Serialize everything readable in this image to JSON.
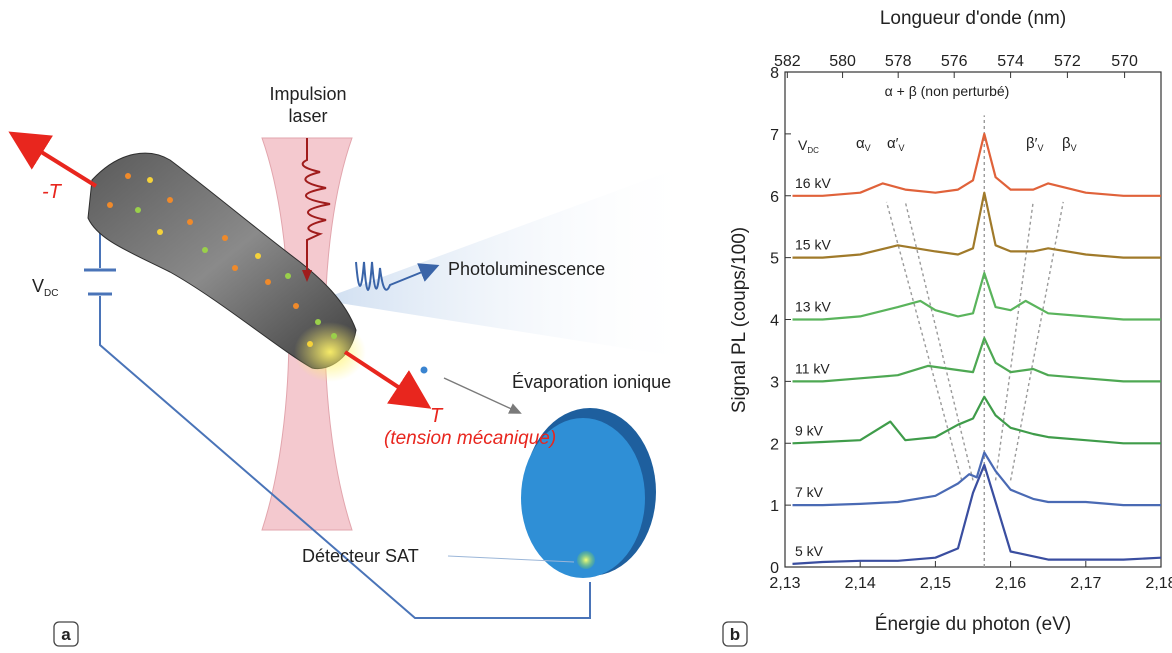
{
  "panel_a": {
    "badge": "a",
    "laser_label_line1": "Impulsion",
    "laser_label_line2": "laser",
    "neg_tension": "-T",
    "vdc_main": "V",
    "vdc_sub": "DC",
    "photolum": "Photoluminescence",
    "evaporation": "Évaporation ionique",
    "tension_t": "T",
    "tension_desc": "(tension mécanique)",
    "detector": "Détecteur SAT",
    "colors": {
      "tension": "#e8261e",
      "wire": "#4a74b8",
      "detector": "#2f8fd6",
      "laser": "#f4c9cf",
      "pulse": "#a01c1c",
      "photon": "#3a64a8"
    }
  },
  "panel_b": {
    "badge": "b",
    "annotation_unperturbed": "α + β (non perturbé)",
    "vdc_main": "V",
    "vdc_sub": "DC",
    "alpha_main": "α",
    "alpha_prime_main": "α′",
    "beta_prime_main": "β′",
    "beta_main": "β",
    "peak_sub": "V"
  },
  "chart_data": {
    "type": "line",
    "xlabel": "Énergie du photon (eV)",
    "ylabel": "Signal PL (coups/100)",
    "x2label": "Longueur d'onde (nm)",
    "xlim": [
      2.13,
      2.18
    ],
    "ylim": [
      0,
      8
    ],
    "x_ticks": [
      "2,13",
      "2,14",
      "2,15",
      "2,16",
      "2,17",
      "2,18"
    ],
    "y_ticks": [
      "0",
      "1",
      "2",
      "3",
      "4",
      "5",
      "6",
      "7",
      "8"
    ],
    "x2_ticks": [
      "582",
      "580",
      "578",
      "576",
      "574",
      "572",
      "570"
    ],
    "series": [
      {
        "name": "5 kV",
        "color": "#3a4ea0",
        "x": [
          2.131,
          2.135,
          2.14,
          2.145,
          2.15,
          2.153,
          2.155,
          2.1565,
          2.158,
          2.16,
          2.165,
          2.17,
          2.175,
          2.18
        ],
        "y": [
          0.05,
          0.08,
          0.1,
          0.1,
          0.15,
          0.3,
          1.2,
          1.65,
          1.05,
          0.25,
          0.12,
          0.12,
          0.12,
          0.15
        ]
      },
      {
        "name": "7 kV",
        "color": "#4a6ab4",
        "x": [
          2.131,
          2.135,
          2.14,
          2.145,
          2.15,
          2.153,
          2.1545,
          2.1555,
          2.1565,
          2.158,
          2.16,
          2.163,
          2.165,
          2.17,
          2.175,
          2.18
        ],
        "y": [
          1.0,
          1.0,
          1.02,
          1.05,
          1.15,
          1.35,
          1.5,
          1.45,
          1.85,
          1.55,
          1.25,
          1.1,
          1.05,
          1.05,
          1.0,
          1.0
        ]
      },
      {
        "name": "9 kV",
        "color": "#3f9c4a",
        "x": [
          2.131,
          2.135,
          2.14,
          2.144,
          2.146,
          2.15,
          2.153,
          2.155,
          2.1565,
          2.158,
          2.16,
          2.163,
          2.165,
          2.17,
          2.175,
          2.18
        ],
        "y": [
          2.0,
          2.02,
          2.05,
          2.35,
          2.05,
          2.1,
          2.3,
          2.4,
          2.75,
          2.45,
          2.25,
          2.15,
          2.1,
          2.05,
          2.0,
          2.0
        ]
      },
      {
        "name": "11 kV",
        "color": "#4ea853",
        "x": [
          2.131,
          2.135,
          2.14,
          2.145,
          2.149,
          2.152,
          2.155,
          2.1565,
          2.158,
          2.16,
          2.163,
          2.165,
          2.17,
          2.175,
          2.18
        ],
        "y": [
          3.0,
          3.0,
          3.05,
          3.1,
          3.25,
          3.2,
          3.15,
          3.7,
          3.3,
          3.15,
          3.2,
          3.1,
          3.05,
          3.0,
          3.0
        ]
      },
      {
        "name": "13 kV",
        "color": "#5ab45c",
        "x": [
          2.131,
          2.135,
          2.14,
          2.145,
          2.148,
          2.15,
          2.153,
          2.155,
          2.1565,
          2.158,
          2.16,
          2.162,
          2.165,
          2.17,
          2.175,
          2.18
        ],
        "y": [
          4.0,
          4.0,
          4.05,
          4.2,
          4.3,
          4.15,
          4.05,
          4.1,
          4.75,
          4.2,
          4.15,
          4.3,
          4.1,
          4.05,
          4.0,
          4.0
        ]
      },
      {
        "name": "15 kV",
        "color": "#a07a2a",
        "x": [
          2.131,
          2.135,
          2.14,
          2.145,
          2.15,
          2.153,
          2.155,
          2.1565,
          2.158,
          2.16,
          2.163,
          2.165,
          2.17,
          2.175,
          2.18
        ],
        "y": [
          5.0,
          5.0,
          5.05,
          5.2,
          5.1,
          5.05,
          5.15,
          6.05,
          5.2,
          5.1,
          5.1,
          5.15,
          5.05,
          5.0,
          5.0
        ]
      },
      {
        "name": "16 kV",
        "color": "#e0623a",
        "x": [
          2.131,
          2.135,
          2.14,
          2.143,
          2.146,
          2.15,
          2.153,
          2.155,
          2.1565,
          2.158,
          2.16,
          2.163,
          2.165,
          2.17,
          2.175,
          2.18
        ],
        "y": [
          6.0,
          6.0,
          6.05,
          6.2,
          6.1,
          6.05,
          6.1,
          6.25,
          7.0,
          6.3,
          6.1,
          6.1,
          6.2,
          6.05,
          6.0,
          6.0
        ]
      }
    ]
  }
}
